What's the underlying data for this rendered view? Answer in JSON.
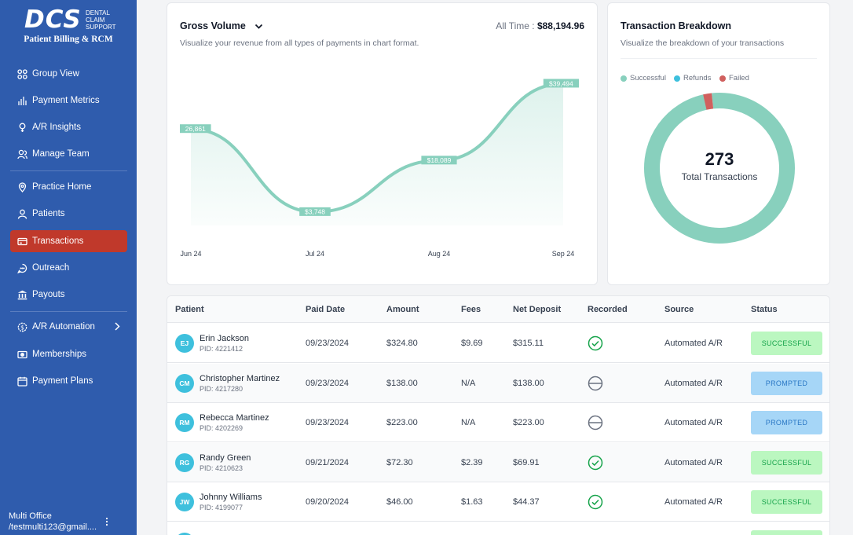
{
  "brand": {
    "mark": "DCS",
    "side": [
      "DENTAL",
      "CLAIM",
      "SUPPORT"
    ],
    "subtitle": "Patient Billing & RCM"
  },
  "sidebar": {
    "items": [
      {
        "label": "Group View",
        "icon": "grid-icon"
      },
      {
        "label": "Payment Metrics",
        "icon": "bar-chart-icon"
      },
      {
        "label": "A/R Insights",
        "icon": "lightbulb-icon"
      },
      {
        "label": "Manage Team",
        "icon": "users-icon"
      },
      {
        "label": "Practice Home",
        "icon": "location-icon"
      },
      {
        "label": "Patients",
        "icon": "user-icon"
      },
      {
        "label": "Transactions",
        "icon": "credit-card-icon",
        "active": true
      },
      {
        "label": "Outreach",
        "icon": "chat-icon"
      },
      {
        "label": "Payouts",
        "icon": "bank-icon"
      },
      {
        "label": "A/R Automation",
        "icon": "gear-dollar-icon"
      },
      {
        "label": "Memberships",
        "icon": "ticket-icon"
      },
      {
        "label": "Payment Plans",
        "icon": "calendar-icon"
      }
    ],
    "user": {
      "name": "Multi Office",
      "email": "/testmulti123@gmail...."
    }
  },
  "gross": {
    "title": "Gross Volume",
    "subtitle": "Visualize your revenue from all types of payments in chart format.",
    "alltime_label": "All Time :",
    "alltime_value": "$88,194.96"
  },
  "breakdown": {
    "title": "Transaction Breakdown",
    "subtitle": "Visualize the breakdown of your transactions",
    "legend": [
      {
        "label": "Successful",
        "color": "#88d0bd"
      },
      {
        "label": "Refunds",
        "color": "#3ec0dd"
      },
      {
        "label": "Failed",
        "color": "#d0605e"
      }
    ],
    "total": "273",
    "total_label": "Total Transactions"
  },
  "chart_data": [
    {
      "type": "area",
      "categories": [
        "Jun 24",
        "Jul 24",
        "Aug 24",
        "Sep 24"
      ],
      "values": [
        26861,
        3748,
        18089,
        39494
      ],
      "labels": [
        "26,861",
        "$3,748",
        "$18,089",
        "$39,494"
      ],
      "ylim": [
        0,
        42000
      ],
      "color": "#88d0bd"
    },
    {
      "type": "pie",
      "categories": [
        "Successful",
        "Refunds",
        "Failed"
      ],
      "values": [
        268,
        0,
        5
      ],
      "colors": [
        "#88d0bd",
        "#3ec0dd",
        "#d0605e"
      ]
    }
  ],
  "table": {
    "headers": [
      "Patient",
      "Paid Date",
      "Amount",
      "Fees",
      "Net Deposit",
      "Recorded",
      "Source",
      "Status"
    ],
    "rows": [
      {
        "initials": "EJ",
        "name": "Erin Jackson",
        "pid": "PID: 4221412",
        "date": "09/23/2024",
        "amount": "$324.80",
        "fees": "$9.69",
        "net": "$315.11",
        "recorded": "check-circle-icon",
        "source": "Automated A/R",
        "status": "SUCCESSFUL"
      },
      {
        "initials": "CM",
        "name": "Christopher Martinez",
        "pid": "PID: 4217280",
        "date": "09/23/2024",
        "amount": "$138.00",
        "fees": "N/A",
        "net": "$138.00",
        "recorded": "minus-circle-icon",
        "source": "Automated A/R",
        "status": "PROMPTED"
      },
      {
        "initials": "RM",
        "name": "Rebecca Martinez",
        "pid": "PID: 4202269",
        "date": "09/23/2024",
        "amount": "$223.00",
        "fees": "N/A",
        "net": "$223.00",
        "recorded": "minus-circle-icon",
        "source": "Automated A/R",
        "status": "PROMPTED"
      },
      {
        "initials": "RG",
        "name": "Randy Green",
        "pid": "PID: 4210623",
        "date": "09/21/2024",
        "amount": "$72.30",
        "fees": "$2.39",
        "net": "$69.91",
        "recorded": "check-circle-icon",
        "source": "Automated A/R",
        "status": "SUCCESSFUL"
      },
      {
        "initials": "JW",
        "name": "Johnny Williams",
        "pid": "PID: 4199077",
        "date": "09/20/2024",
        "amount": "$46.00",
        "fees": "$1.63",
        "net": "$44.37",
        "recorded": "check-circle-icon",
        "source": "Automated A/R",
        "status": "SUCCESSFUL"
      }
    ]
  }
}
